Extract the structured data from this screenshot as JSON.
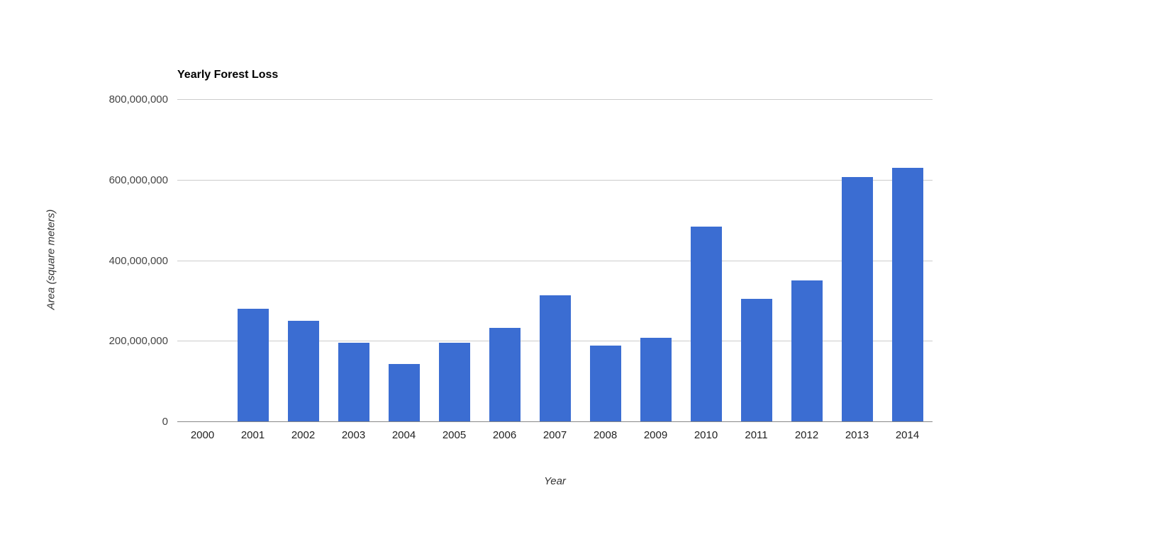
{
  "chart_data": {
    "type": "bar",
    "title": "Yearly Forest Loss",
    "xlabel": "Year",
    "ylabel": "Area (square meters)",
    "categories": [
      "2000",
      "2001",
      "2002",
      "2003",
      "2004",
      "2005",
      "2006",
      "2007",
      "2008",
      "2009",
      "2010",
      "2011",
      "2012",
      "2013",
      "2014"
    ],
    "values": [
      0,
      280000000,
      250000000,
      195000000,
      143000000,
      195000000,
      232000000,
      313000000,
      188000000,
      207000000,
      483000000,
      305000000,
      350000000,
      607000000,
      630000000
    ],
    "ylim": [
      0,
      800000000
    ],
    "yticks": [
      0,
      200000000,
      400000000,
      600000000,
      800000000
    ],
    "ytick_labels": [
      "0",
      "200,000,000",
      "400,000,000",
      "600,000,000",
      "800,000,000"
    ],
    "grid": true,
    "legend": "none",
    "bar_color": "#3b6dd2",
    "background": "#ffffff"
  }
}
